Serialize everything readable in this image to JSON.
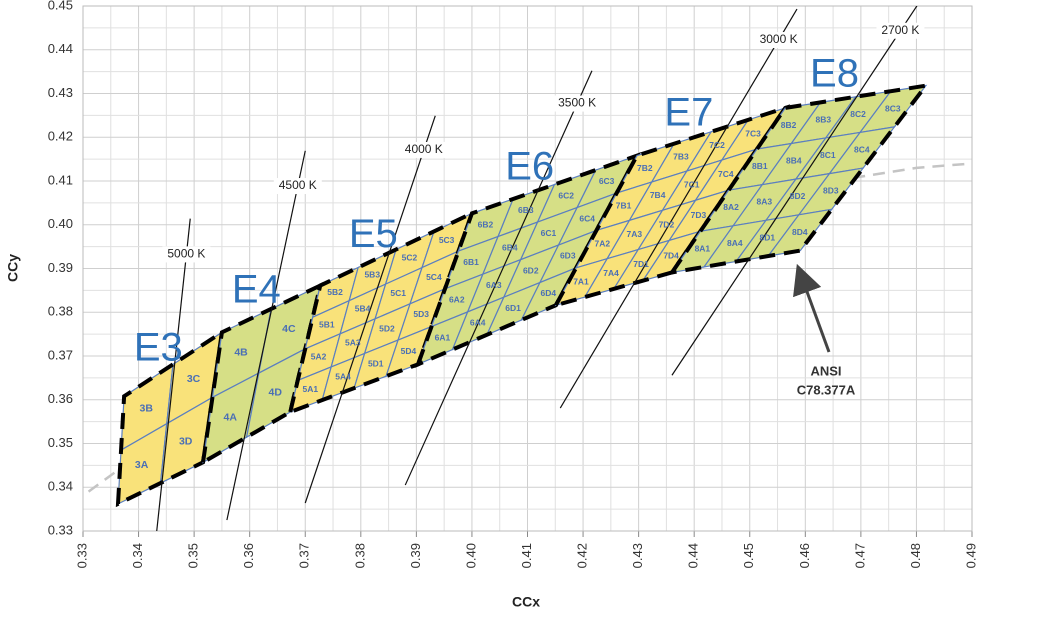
{
  "chart_data": {
    "type": "chromaticity",
    "x_label": "CCx",
    "y_label": "CCy",
    "xlim": [
      0.33,
      0.49
    ],
    "ylim": [
      0.33,
      0.45
    ],
    "xticks": [
      0.33,
      0.34,
      0.35,
      0.36,
      0.37,
      0.38,
      0.39,
      {
        "value": 0.4,
        "label": "0.40"
      },
      0.41,
      0.42,
      0.43,
      0.44,
      0.45,
      0.46,
      0.47,
      0.48,
      0.49
    ],
    "yticks": [
      0.33,
      0.34,
      0.35,
      0.36,
      0.37,
      0.38,
      0.39,
      {
        "value": 0.4,
        "label": "0.40"
      },
      0.41,
      0.42,
      0.43,
      0.44,
      0.45
    ],
    "grid": true,
    "regions": [
      {
        "name": "E3",
        "color": "#f9e27a",
        "corners": [
          [
            0.3363,
            0.3362
          ],
          [
            0.3374,
            0.3608
          ],
          [
            0.355,
            0.3754
          ],
          [
            0.3516,
            0.3457
          ]
        ],
        "bins": [
          [
            "3B",
            "3C"
          ],
          [
            "3A",
            "3D"
          ]
        ]
      },
      {
        "name": "E4",
        "color": "#d6df86",
        "corners": [
          [
            0.3516,
            0.3457
          ],
          [
            0.355,
            0.3754
          ],
          [
            0.3727,
            0.3861
          ],
          [
            0.3673,
            0.3572
          ]
        ],
        "bins": [
          [
            "4B",
            "4C"
          ],
          [
            "4A",
            "4D"
          ]
        ]
      },
      {
        "name": "E5",
        "color": "#f9e27a",
        "corners": [
          [
            0.3673,
            0.3572
          ],
          [
            0.3727,
            0.3861
          ],
          [
            0.4,
            0.4026
          ],
          [
            0.3903,
            0.3681
          ]
        ],
        "bins": [
          [
            "5B2",
            "5B3",
            "5C2",
            "5C3"
          ],
          [
            "5B1",
            "5B4",
            "5C1",
            "5C4"
          ],
          [
            "5A2",
            "5A3",
            "5D2",
            "5D3"
          ],
          [
            "5A1",
            "5A4",
            "5D1",
            "5D4"
          ]
        ]
      },
      {
        "name": "E6",
        "color": "#d6df86",
        "corners": [
          [
            0.3903,
            0.3681
          ],
          [
            0.4,
            0.4026
          ],
          [
            0.4297,
            0.4158
          ],
          [
            0.4151,
            0.3816
          ]
        ],
        "bins": [
          [
            "6B2",
            "6B3",
            "6C2",
            "6C3"
          ],
          [
            "6B1",
            "6B4",
            "6C1",
            "6C4"
          ],
          [
            "6A2",
            "6A3",
            "6D2",
            "6D3"
          ],
          [
            "6A1",
            "6A4",
            "6D1",
            "6D4"
          ]
        ]
      },
      {
        "name": "E7",
        "color": "#f9e27a",
        "corners": [
          [
            0.4151,
            0.3816
          ],
          [
            0.4297,
            0.4158
          ],
          [
            0.4564,
            0.4267
          ],
          [
            0.436,
            0.3891
          ]
        ],
        "bins": [
          [
            "7B2",
            "7B3",
            "7C2",
            "7C3"
          ],
          [
            "7B1",
            "7B4",
            "7C1",
            "7C4"
          ],
          [
            "7A2",
            "7A3",
            "7D2",
            "7D3"
          ],
          [
            "7A1",
            "7A4",
            "7D1",
            "7D4"
          ]
        ]
      },
      {
        "name": "E8",
        "color": "#d6df86",
        "corners": [
          [
            0.436,
            0.3891
          ],
          [
            0.4564,
            0.4267
          ],
          [
            0.4817,
            0.4318
          ],
          [
            0.4591,
            0.3941
          ]
        ],
        "bins": [
          [
            "8B2",
            "8B3",
            "8C2",
            "8C3"
          ],
          [
            "8B1",
            "8B4",
            "8C1",
            "8C4"
          ],
          [
            "8A2",
            "8A3",
            "8D2",
            "8D3"
          ],
          [
            "8A1",
            "8A4",
            "8D1",
            "8D4"
          ]
        ]
      }
    ],
    "isotherms": [
      {
        "label": "5000 K",
        "x": [
          0.343,
          0.3493
        ],
        "y": [
          0.3268,
          0.4014
        ]
      },
      {
        "label": "4500 K",
        "x": [
          0.3559,
          0.37
        ],
        "y": [
          0.3325,
          0.4169
        ]
      },
      {
        "label": "4000 K",
        "x": [
          0.37,
          0.3934
        ],
        "y": [
          0.3364,
          0.4249
        ]
      },
      {
        "label": "3500 K",
        "x": [
          0.388,
          0.4216
        ],
        "y": [
          0.3405,
          0.4352
        ]
      },
      {
        "label": "3000 K",
        "x": [
          0.4159,
          0.4585
        ],
        "y": [
          0.3581,
          0.4493
        ]
      },
      {
        "label": "2700 K",
        "x": [
          0.436,
          0.4807
        ],
        "y": [
          0.3656,
          0.4512
        ]
      }
    ],
    "locus": {
      "color": "#c4c4c4",
      "x": [
        0.331,
        0.345,
        0.36,
        0.38,
        0.4,
        0.42,
        0.44,
        0.46,
        0.48,
        0.49
      ],
      "y": [
        0.339,
        0.352,
        0.365,
        0.38,
        0.392,
        0.4,
        0.405,
        0.409,
        0.413,
        0.414
      ]
    },
    "annotation": [
      "ANSI",
      "C78.377A"
    ]
  }
}
